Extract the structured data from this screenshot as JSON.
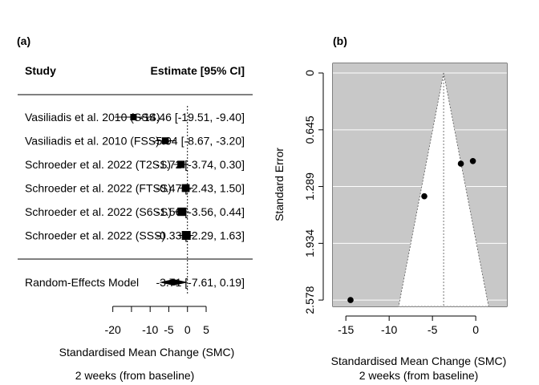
{
  "chart_data": [
    {
      "type": "forest",
      "panel_label": "(a)",
      "header": {
        "study": "Study",
        "estimate": "Estimate [95% CI]"
      },
      "xlabel": "Standardised Mean Change (SMC)",
      "sublabel": "2 weeks (from baseline)",
      "xticks": [
        -20,
        -10,
        -5,
        0,
        5
      ],
      "xlim": [
        -21,
        5
      ],
      "studies": [
        {
          "label": "Vasiliadis et al. 2010 (SSS)",
          "estimate": -14.46,
          "ci_low": -19.51,
          "ci_high": -9.4,
          "ci_text": "-14.46 [-19.51, -9.40]"
        },
        {
          "label": "Vasiliadis et al. 2010 (FSS)",
          "estimate": -5.94,
          "ci_low": -8.67,
          "ci_high": -3.2,
          "ci_text": "-5.94 [-8.67, -3.20]"
        },
        {
          "label": "Schroeder et al. 2022 (T2SS)",
          "estimate": -1.72,
          "ci_low": -3.74,
          "ci_high": 0.3,
          "ci_text": "-1.72 [-3.74, 0.30]"
        },
        {
          "label": "Schroeder et al. 2022 (FTSS)",
          "estimate": -0.47,
          "ci_low": -2.43,
          "ci_high": 1.5,
          "ci_text": "-0.47 [-2.43, 1.50]"
        },
        {
          "label": "Schroeder et al. 2022 (S6SS)",
          "estimate": -1.56,
          "ci_low": -3.56,
          "ci_high": 0.44,
          "ci_text": "-1.56 [-3.56, 0.44]"
        },
        {
          "label": "Schroeder et al. 2022 (SSS)",
          "estimate": -0.33,
          "ci_low": -2.29,
          "ci_high": 1.63,
          "ci_text": "-0.33 [-2.29, 1.63]"
        }
      ],
      "summary": {
        "label": "Random-Effects Model",
        "estimate": -3.71,
        "ci_low": -7.61,
        "ci_high": 0.19,
        "ci_text": "-3.71 [-7.61, 0.19]"
      }
    },
    {
      "type": "scatter",
      "panel_label": "(b)",
      "xlabel": "Standardised Mean Change (SMC)",
      "sublabel": "2 weeks (from baseline)",
      "ylabel": "Standard Error",
      "xlim": [
        -16.5,
        3.6
      ],
      "ylim": [
        0,
        2.65
      ],
      "y_reversed": true,
      "xticks": [
        -15,
        -10,
        -5,
        0
      ],
      "yticks": [
        "0",
        "0.645",
        "1.289",
        "1.934",
        "2.578"
      ],
      "center": -3.71,
      "points": [
        {
          "x": -14.46,
          "y": 2.578
        },
        {
          "x": -5.94,
          "y": 1.4
        },
        {
          "x": -1.72,
          "y": 1.03
        },
        {
          "x": -0.33,
          "y": 1.0
        }
      ],
      "colors": {
        "background": "#c8c8c8",
        "funnel": "#ffffff",
        "points": "#000000"
      }
    }
  ]
}
